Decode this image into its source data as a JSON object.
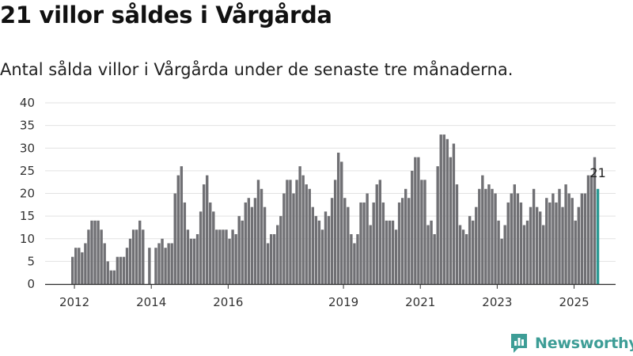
{
  "title": "21 villor såldes i Vårgårda",
  "subtitle": "Antal sålda villor i Vårgårda under de senaste tre månaderna.",
  "brand": {
    "name": "Newsworthy",
    "color": "#3d9d96",
    "icon": "newsworthy-logo-icon"
  },
  "chart_data": {
    "type": "bar",
    "title": "",
    "xlabel": "",
    "ylabel": "",
    "ylim": [
      0,
      40
    ],
    "yticks": [
      0,
      5,
      10,
      15,
      20,
      25,
      30,
      35,
      40
    ],
    "xticks": [
      "2012",
      "2014",
      "2016",
      "2019",
      "2021",
      "2023",
      "2025"
    ],
    "grid": true,
    "legend": "none",
    "bar_color": "#707074",
    "highlight_color": "#2a9a94",
    "highlight_label": "21",
    "series": [
      {
        "values": [
          6,
          8,
          8,
          7,
          9,
          12,
          14,
          14,
          14,
          12,
          9,
          5,
          3,
          3,
          6,
          6,
          6,
          8,
          10,
          12,
          12,
          14,
          12,
          0,
          8,
          0,
          8,
          9,
          10,
          8,
          9,
          9,
          20,
          24,
          26,
          18,
          12,
          10,
          10,
          11,
          16,
          22,
          24,
          18,
          16,
          12,
          12,
          12,
          12,
          10,
          12,
          11,
          15,
          14,
          18,
          19,
          17,
          19,
          23,
          21,
          17,
          9,
          11,
          11,
          13,
          15,
          20,
          23,
          23,
          20,
          23,
          26,
          24,
          22,
          21,
          17,
          15,
          14,
          12,
          16,
          15,
          19,
          23,
          29,
          27,
          19,
          17,
          11,
          9,
          11,
          18,
          18,
          20,
          13,
          18,
          22,
          23,
          18,
          14,
          14,
          14,
          12,
          18,
          19,
          21,
          19,
          25,
          28,
          28,
          23,
          23,
          13,
          14,
          11,
          26,
          33,
          33,
          32,
          28,
          31,
          22,
          13,
          12,
          11,
          15,
          14,
          17,
          21,
          24,
          21,
          22,
          21,
          20,
          14,
          10,
          13,
          18,
          20,
          22,
          20,
          18,
          13,
          14,
          17,
          21,
          17,
          16,
          13,
          19,
          18,
          20,
          18,
          21,
          17,
          22,
          20,
          19,
          14,
          17,
          20,
          20,
          24,
          24,
          28,
          21
        ]
      }
    ]
  }
}
